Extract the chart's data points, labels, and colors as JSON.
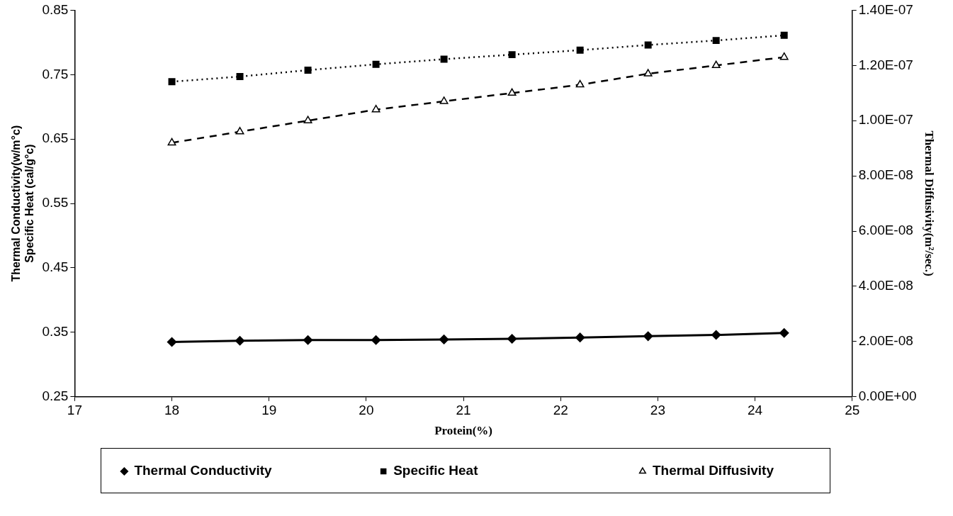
{
  "chart_data": {
    "type": "line",
    "xlabel": "Protein(%)",
    "ylabel": "Thermal Conductivity(w/m°c)\nSpecific Heat (cal/g°c)",
    "y2label": "Thermal Diffusivity(m²/sec.)",
    "x": [
      18,
      18.7,
      19.4,
      20.1,
      20.8,
      21.5,
      22.2,
      22.9,
      23.6,
      24.3
    ],
    "series": [
      {
        "name": "Thermal Conductivity",
        "color": "#000000",
        "marker": "diamond",
        "line_style": "solid",
        "values": [
          0.335,
          0.337,
          0.338,
          0.338,
          0.339,
          0.34,
          0.342,
          0.344,
          0.346,
          0.349
        ]
      },
      {
        "name": "Specific Heat",
        "color": "#000000",
        "marker": "square",
        "line_style": "dotted",
        "values": [
          0.739,
          0.747,
          0.757,
          0.766,
          0.774,
          0.781,
          0.788,
          0.796,
          0.803,
          0.811
        ]
      },
      {
        "name": "Thermal Diffusivity",
        "color": "#000000",
        "marker": "triangle",
        "line_style": "dashed",
        "axis": "y2",
        "values": [
          9.2e-08,
          9.6e-08,
          1e-07,
          1.04e-07,
          1.07e-07,
          1.1e-07,
          1.13e-07,
          1.17e-07,
          1.2e-07,
          1.23e-07
        ]
      }
    ],
    "xlim": [
      17,
      25
    ],
    "xticks": [
      17,
      18,
      19,
      20,
      21,
      22,
      23,
      24,
      25
    ],
    "ylim": [
      0.25,
      0.85
    ],
    "yticks": [
      0.25,
      0.35,
      0.45,
      0.55,
      0.65,
      0.75,
      0.85
    ],
    "y2lim": [
      0,
      1.4e-07
    ],
    "y2ticks": [
      {
        "value": 0,
        "label": "0.00E+00"
      },
      {
        "value": 2e-08,
        "label": "2.00E-08"
      },
      {
        "value": 4e-08,
        "label": "4.00E-08"
      },
      {
        "value": 6e-08,
        "label": "6.00E-08"
      },
      {
        "value": 8e-08,
        "label": "8.00E-08"
      },
      {
        "value": 1e-07,
        "label": "1.00E-07"
      },
      {
        "value": 1.2e-07,
        "label": "1.20E-07"
      },
      {
        "value": 1.4e-07,
        "label": "1.40E-07"
      }
    ],
    "legend": "bottom",
    "grid": false
  }
}
